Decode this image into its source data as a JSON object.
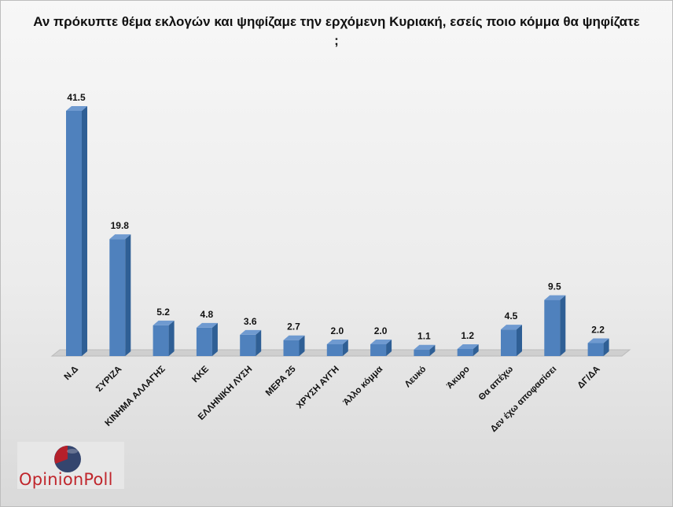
{
  "title": "Αν πρόκυπτε θέμα εκλογών και ψηφίζαμε την ερχόμενη Κυριακή, εσείς ποιο κόμμα θα ψηφίζατε ;",
  "logo": {
    "text": "OpinionPoll",
    "icon": "pie-logo-icon"
  },
  "chart_data": {
    "type": "bar",
    "title": "Αν πρόκυπτε θέμα εκλογών και ψηφίζαμε την ερχόμενη Κυριακή, εσείς ποιο κόμμα θα ψηφίζατε ;",
    "categories": [
      "Ν.Δ",
      "ΣΥΡΙΖΑ",
      "ΚΙΝΗΜΑ ΑΛΛΑΓΗΣ",
      "ΚΚΕ",
      "ΕΛΛΗΝΙΚΗ ΛΥΣΗ",
      "ΜΕΡΑ 25",
      "ΧΡΥΣΗ ΑΥΓΗ",
      "Άλλο κόμμα",
      "Λευκό",
      "Άκυρο",
      "Θα απέχω",
      "Δεν έχω αποφασίσει",
      "ΔΓ/ΔΑ"
    ],
    "values": [
      41.5,
      19.8,
      5.2,
      4.8,
      3.6,
      2.7,
      2.0,
      2.0,
      1.1,
      1.2,
      4.5,
      9.5,
      2.2
    ],
    "value_labels": [
      "41.5",
      "19.8",
      "5.2",
      "4.8",
      "3.6",
      "2.7",
      "2.0",
      "2.0",
      "1.1",
      "1.2",
      "4.5",
      "9.5",
      "2.2"
    ],
    "ylim": [
      0,
      41.5
    ],
    "grid": false,
    "legend": "none",
    "colors": {
      "bar_front": "#4f81bd",
      "bar_side": "#2f5f95",
      "bar_top": "#6f9ad0",
      "floor": "#cfcfcf"
    }
  }
}
